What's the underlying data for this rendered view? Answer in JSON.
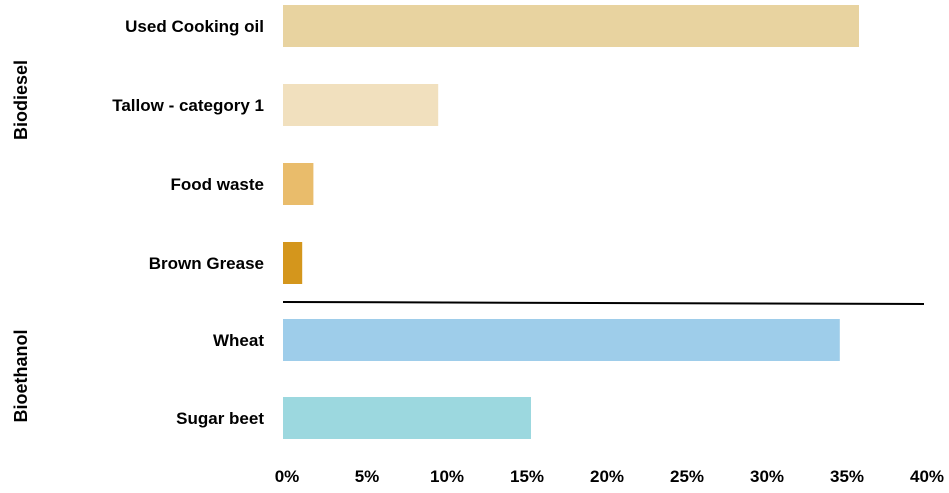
{
  "chart_data": {
    "type": "bar",
    "orientation": "horizontal",
    "categories": [
      "Used Cooking oil",
      "Tallow - category 1",
      "Food waste",
      "Brown Grease",
      "Wheat",
      "Sugar beet"
    ],
    "values": [
      36.0,
      9.7,
      1.9,
      1.2,
      34.8,
      15.5
    ],
    "colors": [
      "#e8d3a0",
      "#f1e0be",
      "#e9bc6b",
      "#d4961c",
      "#9ecdea",
      "#9cd8df"
    ],
    "groups": [
      {
        "label": "Biodiesel",
        "categories": [
          "Used Cooking oil",
          "Tallow - category 1",
          "Food waste",
          "Brown Grease"
        ]
      },
      {
        "label": "Bioethanol",
        "categories": [
          "Wheat",
          "Sugar beet"
        ]
      }
    ],
    "xlim": [
      0,
      40
    ],
    "xticks": [
      "0%",
      "5%",
      "10%",
      "15%",
      "20%",
      "25%",
      "30%",
      "35%",
      "40%"
    ],
    "grid": false,
    "legend": false
  }
}
